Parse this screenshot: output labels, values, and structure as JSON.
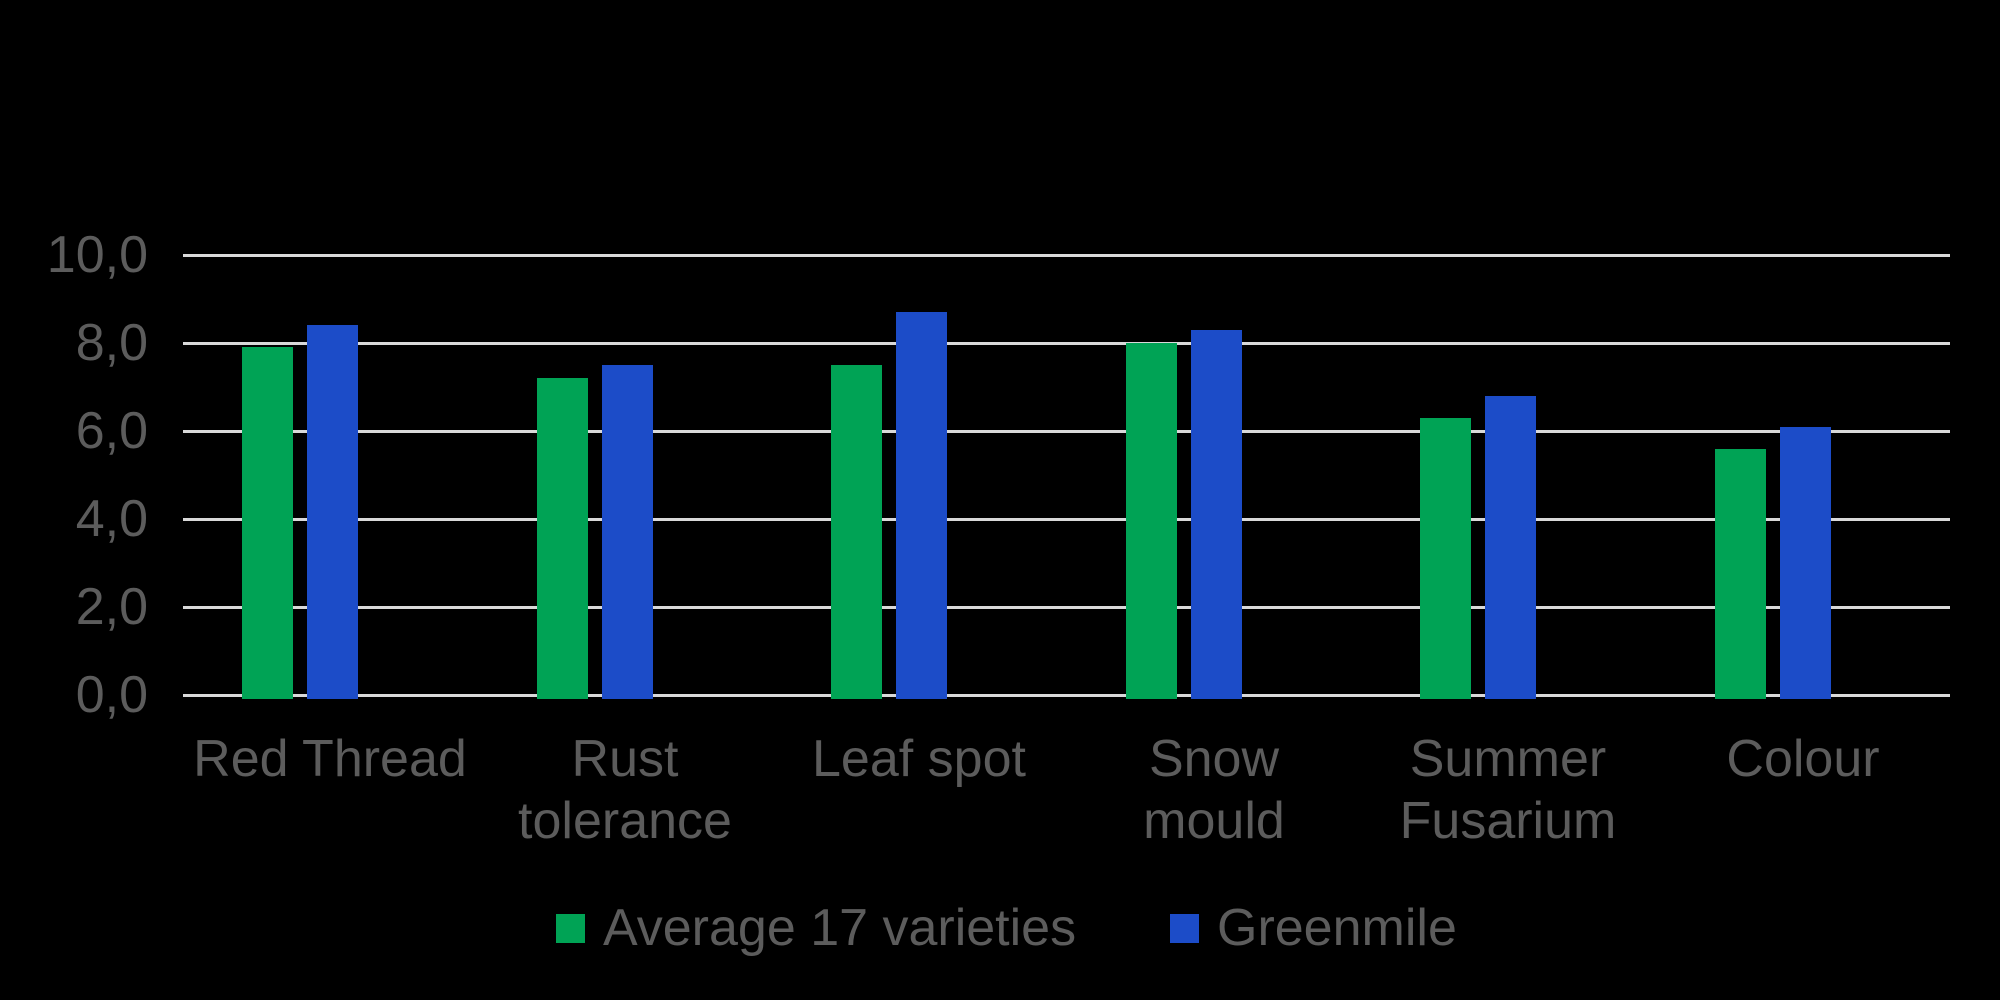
{
  "chart_data": {
    "type": "bar",
    "title": "",
    "xlabel": "",
    "ylabel": "",
    "categories": [
      "Red Thread",
      "Rust tolerance",
      "Leaf spot",
      "Snow mould",
      "Summer Fusarium",
      "Colour"
    ],
    "category_lines": [
      [
        "Red Thread"
      ],
      [
        "Rust",
        "tolerance"
      ],
      [
        "Leaf spot"
      ],
      [
        "Snow",
        "mould"
      ],
      [
        "Summer",
        "Fusarium"
      ],
      [
        "Colour"
      ]
    ],
    "series": [
      {
        "name": "Average 17 varieties",
        "color": "#00A355",
        "values": [
          7.9,
          7.2,
          7.5,
          8.0,
          6.3,
          5.6
        ]
      },
      {
        "name": "Greenmile",
        "color": "#1C4CC8",
        "values": [
          8.4,
          7.5,
          8.7,
          8.3,
          6.8,
          6.1
        ]
      }
    ],
    "ylim": [
      0,
      10
    ],
    "ytick_step": 2,
    "ytick_labels": [
      "0,0",
      "2,0",
      "4,0",
      "6,0",
      "8,0",
      "10,0"
    ],
    "decimal_separator": ",",
    "grid": true,
    "gridline_color": "#D9D9D9",
    "text_color": "#5C5C5C",
    "background_color": "#000000",
    "legend_position": "bottom"
  }
}
